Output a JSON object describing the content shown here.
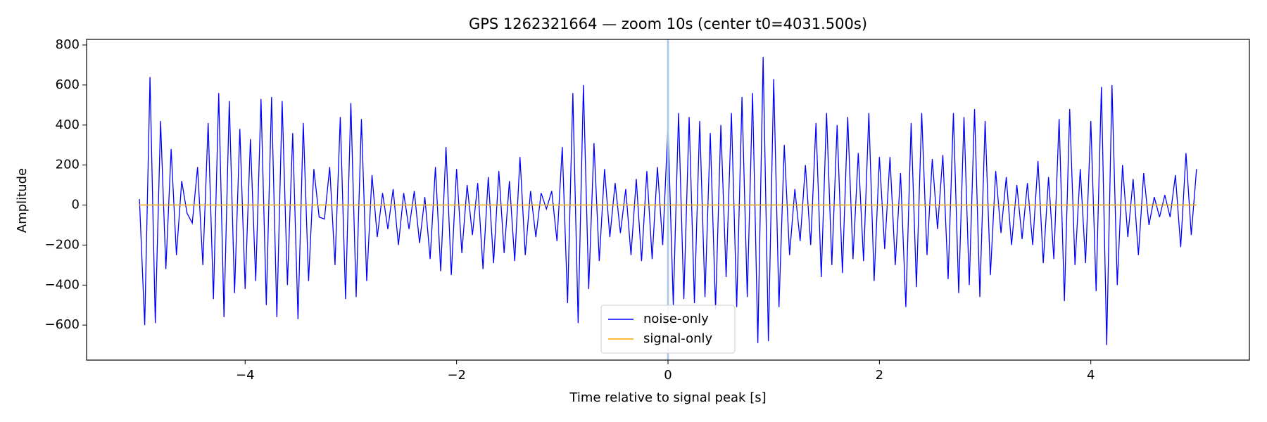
{
  "chart_data": {
    "type": "line",
    "title": "GPS 1262321664 — zoom 10s (center t0=4031.500s)",
    "x_label": "Time relative to signal peak [s]",
    "y_label": "Amplitude",
    "xlim": [
      -5.5,
      5.5
    ],
    "ylim": [
      -775,
      828
    ],
    "xticks": [
      {
        "value": -4,
        "label": "−4"
      },
      {
        "value": -2,
        "label": "−2"
      },
      0,
      2,
      4
    ],
    "yticks": [
      {
        "value": -600,
        "label": "−600"
      },
      {
        "value": -400,
        "label": "−400"
      },
      {
        "value": -200,
        "label": "−200"
      },
      0,
      200,
      400,
      600,
      800
    ],
    "grid": false,
    "legend": "lower center",
    "vlines": [
      {
        "x": 0,
        "color": "#a6c8e3"
      }
    ],
    "series": [
      {
        "name": "noise-only",
        "color": "#0000ff",
        "x": [
          -5,
          -4.95,
          -4.9,
          -4.85,
          -4.8,
          -4.75,
          -4.7,
          -4.65,
          -4.6,
          -4.55,
          -4.5,
          -4.45,
          -4.4,
          -4.35,
          -4.3,
          -4.25,
          -4.2,
          -4.15,
          -4.1,
          -4.05,
          -4,
          -3.95,
          -3.9,
          -3.85,
          -3.8,
          -3.75,
          -3.7,
          -3.65,
          -3.6,
          -3.55,
          -3.5,
          -3.45,
          -3.4,
          -3.35,
          -3.3,
          -3.25,
          -3.2,
          -3.15,
          -3.1,
          -3.05,
          -3,
          -2.95,
          -2.9,
          -2.85,
          -2.8,
          -2.75,
          -2.7,
          -2.65,
          -2.6,
          -2.55,
          -2.5,
          -2.45,
          -2.4,
          -2.35,
          -2.3,
          -2.25,
          -2.2,
          -2.15,
          -2.1,
          -2.05,
          -2,
          -1.95,
          -1.9,
          -1.85,
          -1.8,
          -1.75,
          -1.7,
          -1.65,
          -1.6,
          -1.55,
          -1.5,
          -1.45,
          -1.4,
          -1.35,
          -1.3,
          -1.25,
          -1.2,
          -1.15,
          -1.1,
          -1.05,
          -1,
          -0.95,
          -0.9,
          -0.85,
          -0.8,
          -0.75,
          -0.7,
          -0.65,
          -0.6,
          -0.55,
          -0.5,
          -0.45,
          -0.4,
          -0.35,
          -0.3,
          -0.25,
          -0.2,
          -0.15,
          -0.1,
          -0.05,
          0,
          0.05,
          0.1,
          0.15,
          0.2,
          0.25,
          0.3,
          0.35,
          0.4,
          0.45,
          0.5,
          0.55,
          0.6,
          0.65,
          0.7,
          0.75,
          0.8,
          0.85,
          0.9,
          0.95,
          1,
          1.05,
          1.1,
          1.15,
          1.2,
          1.25,
          1.3,
          1.35,
          1.4,
          1.45,
          1.5,
          1.55,
          1.6,
          1.65,
          1.7,
          1.75,
          1.8,
          1.85,
          1.9,
          1.95,
          2,
          2.05,
          2.1,
          2.15,
          2.2,
          2.25,
          2.3,
          2.35,
          2.4,
          2.45,
          2.5,
          2.55,
          2.6,
          2.65,
          2.7,
          2.75,
          2.8,
          2.85,
          2.9,
          2.95,
          3,
          3.05,
          3.1,
          3.15,
          3.2,
          3.25,
          3.3,
          3.35,
          3.4,
          3.45,
          3.5,
          3.55,
          3.6,
          3.65,
          3.7,
          3.75,
          3.8,
          3.85,
          3.9,
          3.95,
          4,
          4.05,
          4.1,
          4.15,
          4.2,
          4.25,
          4.3,
          4.35,
          4.4,
          4.45,
          4.5,
          4.55,
          4.6,
          4.65,
          4.7,
          4.75,
          4.8,
          4.85,
          4.9,
          4.95,
          5
        ],
        "values": [
          30,
          -600,
          640,
          -590,
          420,
          -320,
          280,
          -250,
          120,
          -40,
          -90,
          190,
          -300,
          410,
          -470,
          560,
          -560,
          520,
          -440,
          380,
          -420,
          330,
          -380,
          530,
          -500,
          540,
          -560,
          520,
          -400,
          360,
          -570,
          410,
          -380,
          180,
          -60,
          -70,
          190,
          -300,
          440,
          -470,
          510,
          -460,
          430,
          -380,
          150,
          -160,
          60,
          -120,
          80,
          -200,
          60,
          -120,
          70,
          -190,
          40,
          -270,
          190,
          -330,
          290,
          -350,
          180,
          -240,
          100,
          -150,
          110,
          -320,
          140,
          -290,
          170,
          -240,
          120,
          -280,
          240,
          -250,
          70,
          -160,
          60,
          -20,
          70,
          -180,
          290,
          -490,
          560,
          -590,
          600,
          -420,
          310,
          -280,
          180,
          -160,
          110,
          -140,
          80,
          -250,
          130,
          -280,
          170,
          -270,
          190,
          -200,
          400,
          -500,
          460,
          -470,
          440,
          -490,
          420,
          -460,
          360,
          -520,
          400,
          -360,
          460,
          -510,
          540,
          -460,
          560,
          -690,
          740,
          -680,
          630,
          -510,
          300,
          -250,
          80,
          -180,
          200,
          -200,
          410,
          -360,
          460,
          -300,
          400,
          -340,
          440,
          -270,
          260,
          -280,
          460,
          -380,
          240,
          -220,
          240,
          -300,
          160,
          -510,
          410,
          -410,
          460,
          -250,
          230,
          -120,
          250,
          -370,
          460,
          -440,
          440,
          -400,
          480,
          -460,
          420,
          -350,
          170,
          -140,
          140,
          -200,
          100,
          -170,
          110,
          -200,
          220,
          -290,
          140,
          -270,
          430,
          -480,
          480,
          -300,
          180,
          -290,
          420,
          -430,
          590,
          -700,
          600,
          -400,
          200,
          -160,
          130,
          -250,
          160,
          -100,
          40,
          -60,
          50,
          -60,
          150,
          -210,
          260,
          -150,
          180
        ]
      },
      {
        "name": "signal-only",
        "color": "#ffa500",
        "x": [
          -5,
          5
        ],
        "values": [
          0,
          0
        ]
      }
    ]
  }
}
